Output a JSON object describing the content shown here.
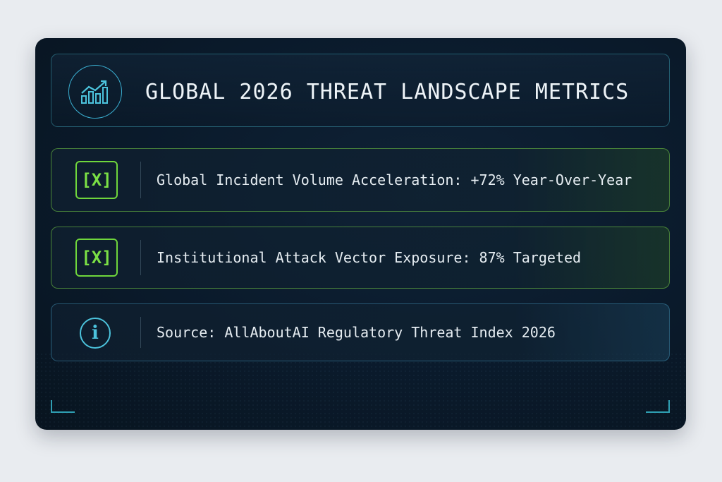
{
  "header": {
    "icon": "trending-chart-icon",
    "title": "GLOBAL 2026 THREAT LANDSCAPE METRICS"
  },
  "metrics": [
    {
      "icon": "x-badge-icon",
      "badge": "[X]",
      "text": "Global Incident Volume Acceleration: +72% Year-Over-Year"
    },
    {
      "icon": "x-badge-icon",
      "badge": "[X]",
      "text": "Institutional Attack Vector Exposure: 87% Targeted"
    },
    {
      "icon": "info-icon",
      "badge": "i",
      "text": "Source: AllAboutAI Regulatory Threat Index 2026"
    }
  ],
  "colors": {
    "background": "#e9ecf0",
    "card": "#0a1a2b",
    "accent_cyan": "#38c0d0",
    "accent_green": "#6fd63c",
    "text": "#e6edf2"
  }
}
